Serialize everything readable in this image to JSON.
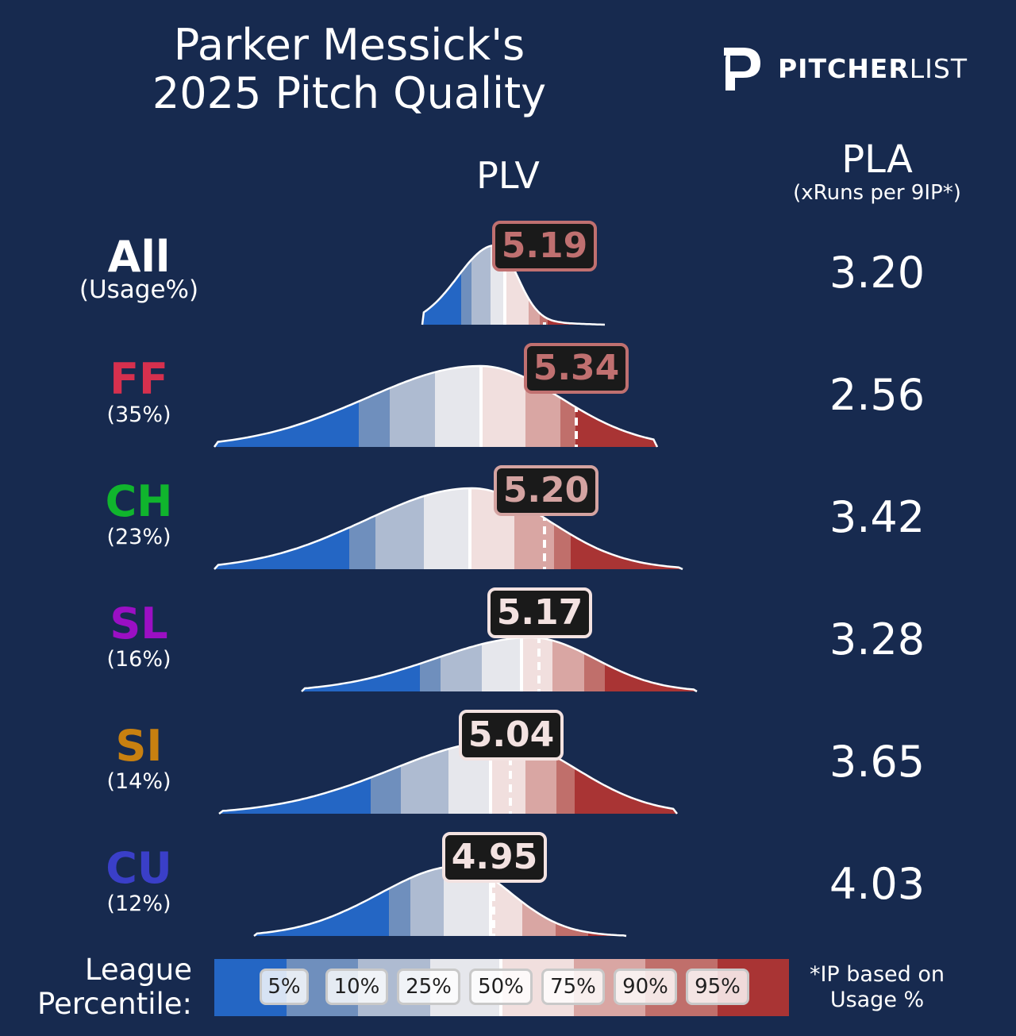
{
  "title": {
    "line1": "Parker Messick's",
    "line2": "2025 Pitch Quality"
  },
  "logo": {
    "bold": "PITCHER",
    "light": "LIST"
  },
  "headers": {
    "plv": "PLV",
    "pla": "PLA",
    "pla_sub": "(xRuns per 9IP*)"
  },
  "colors": {
    "background": "#172a4f",
    "percentile_bands": [
      "#2466c4",
      "#6f8fbd",
      "#aebbd1",
      "#e6e7ec",
      "#f1dfde",
      "#d9a6a3",
      "#c06f6b",
      "#a93434"
    ],
    "pitch_colors": {
      "All": "#ffffff",
      "FF": "#d6304e",
      "CH": "#10b52d",
      "SL": "#9b0fc4",
      "SI": "#c88010",
      "CU": "#3a3fc8"
    }
  },
  "chart_data": {
    "type": "density-strip",
    "pitches": [
      {
        "name": "All",
        "usage": "(Usage%)",
        "plv": "5.19",
        "pla": "3.20",
        "box_border": "#c07070",
        "box_text": "#c07070"
      },
      {
        "name": "FF",
        "usage": "(35%)",
        "plv": "5.34",
        "pla": "2.56",
        "box_border": "#c07070",
        "box_text": "#c07070"
      },
      {
        "name": "CH",
        "usage": "(23%)",
        "plv": "5.20",
        "pla": "3.42",
        "box_border": "#d4a3a1",
        "box_text": "#d4a3a1"
      },
      {
        "name": "SL",
        "usage": "(16%)",
        "plv": "5.17",
        "pla": "3.28",
        "box_border": "#f3e2e1",
        "box_text": "#f3e2e1"
      },
      {
        "name": "SI",
        "usage": "(14%)",
        "plv": "5.04",
        "pla": "3.65",
        "box_border": "#f3e2e1",
        "box_text": "#f3e2e1"
      },
      {
        "name": "CU",
        "usage": "(12%)",
        "plv": "4.95",
        "pla": "4.03",
        "box_border": "#f3e2e1",
        "box_text": "#f3e2e1"
      }
    ],
    "legend_percentiles": [
      "5%",
      "10%",
      "25%",
      "50%",
      "75%",
      "90%",
      "95%"
    ]
  },
  "legend": {
    "label_line1": "League",
    "label_line2": "Percentile:"
  },
  "footnote": {
    "line1": "*IP based on",
    "line2": "Usage %"
  }
}
